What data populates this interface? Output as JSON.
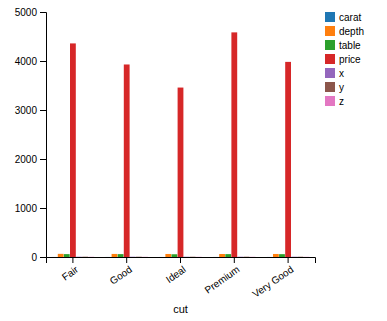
{
  "chart_data": {
    "type": "bar",
    "xlabel": "cut",
    "categories": [
      "Fair",
      "Good",
      "Ideal",
      "Premium",
      "Very Good"
    ],
    "series": [
      {
        "name": "carat",
        "color": "#1f77b4",
        "values": [
          0.9,
          0.85,
          0.7,
          0.89,
          0.81
        ]
      },
      {
        "name": "depth",
        "color": "#ff7f0e",
        "values": [
          64.0,
          62.4,
          61.7,
          61.3,
          61.8
        ]
      },
      {
        "name": "table",
        "color": "#2ca02c",
        "values": [
          59.0,
          58.7,
          56.0,
          58.7,
          57.9
        ]
      },
      {
        "name": "price",
        "color": "#d62728",
        "values": [
          4359,
          3929,
          3458,
          4584,
          3982
        ]
      },
      {
        "name": "x",
        "color": "#9467bd",
        "values": [
          6.19,
          5.85,
          5.51,
          6.09,
          5.74
        ]
      },
      {
        "name": "y",
        "color": "#8c564b",
        "values": [
          6.09,
          5.85,
          5.52,
          6.06,
          5.74
        ]
      },
      {
        "name": "z",
        "color": "#e377c2",
        "values": [
          3.97,
          3.64,
          3.4,
          3.72,
          3.54
        ]
      }
    ],
    "ylim": [
      0,
      5000
    ],
    "yticks": [
      0,
      1000,
      2000,
      3000,
      4000,
      5000
    ],
    "grid": false,
    "legend": "upper right"
  }
}
